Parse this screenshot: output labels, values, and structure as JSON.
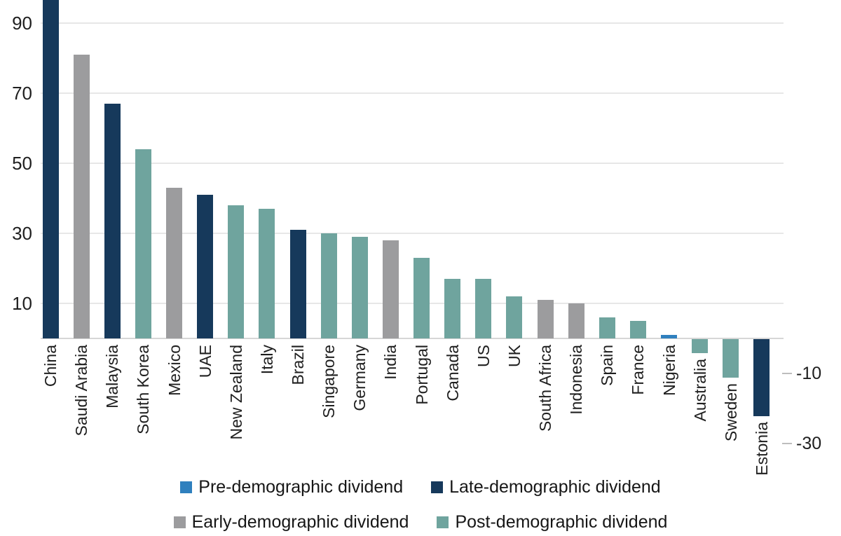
{
  "chart_data": {
    "type": "bar",
    "title": "",
    "xlabel": "",
    "ylabel": "",
    "ylim": [
      -35,
      97
    ],
    "grid": true,
    "legend_position": "bottom",
    "y_ticks_left": [
      90,
      70,
      50,
      30,
      10
    ],
    "y_ticks_right": [
      -10,
      -30
    ],
    "gridline_values": [
      90,
      70,
      50,
      30,
      10,
      0
    ],
    "colors": {
      "pre": "#2f80be",
      "late": "#16395b",
      "early": "#9c9c9e",
      "post": "#6fa49e",
      "grid": "#e7e7e7",
      "baseline": "#d6d6d6",
      "text": "#1f1f1f"
    },
    "bars": [
      {
        "country": "China",
        "group": "late",
        "value": 97
      },
      {
        "country": "Saudi Arabia",
        "group": "early",
        "value": 81
      },
      {
        "country": "Malaysia",
        "group": "late",
        "value": 67
      },
      {
        "country": "South Korea",
        "group": "post",
        "value": 54
      },
      {
        "country": "Mexico",
        "group": "early",
        "value": 43
      },
      {
        "country": "UAE",
        "group": "late",
        "value": 41
      },
      {
        "country": "New Zealand",
        "group": "post",
        "value": 38
      },
      {
        "country": "Italy",
        "group": "post",
        "value": 37
      },
      {
        "country": "Brazil",
        "group": "late",
        "value": 31
      },
      {
        "country": "Singapore",
        "group": "post",
        "value": 30
      },
      {
        "country": "Germany",
        "group": "post",
        "value": 29
      },
      {
        "country": "India",
        "group": "early",
        "value": 28
      },
      {
        "country": "Portugal",
        "group": "post",
        "value": 23
      },
      {
        "country": "Canada",
        "group": "post",
        "value": 17
      },
      {
        "country": "US",
        "group": "post",
        "value": 17
      },
      {
        "country": "UK",
        "group": "post",
        "value": 12
      },
      {
        "country": "South Africa",
        "group": "early",
        "value": 11
      },
      {
        "country": "Indonesia",
        "group": "early",
        "value": 10
      },
      {
        "country": "Spain",
        "group": "post",
        "value": 6
      },
      {
        "country": "France",
        "group": "post",
        "value": 5
      },
      {
        "country": "Nigeria",
        "group": "pre",
        "value": 1
      },
      {
        "country": "Australia",
        "group": "post",
        "value": -4
      },
      {
        "country": "Sweden",
        "group": "post",
        "value": -11
      },
      {
        "country": "Estonia",
        "group": "late",
        "value": -22
      }
    ],
    "legend_rows": [
      [
        {
          "label": "Pre-demographic dividend",
          "group": "pre"
        },
        {
          "label": "Late-demographic dividend",
          "group": "late"
        }
      ],
      [
        {
          "label": "Early-demographic dividend",
          "group": "early"
        },
        {
          "label": "Post-demographic dividend",
          "group": "post"
        }
      ]
    ]
  }
}
